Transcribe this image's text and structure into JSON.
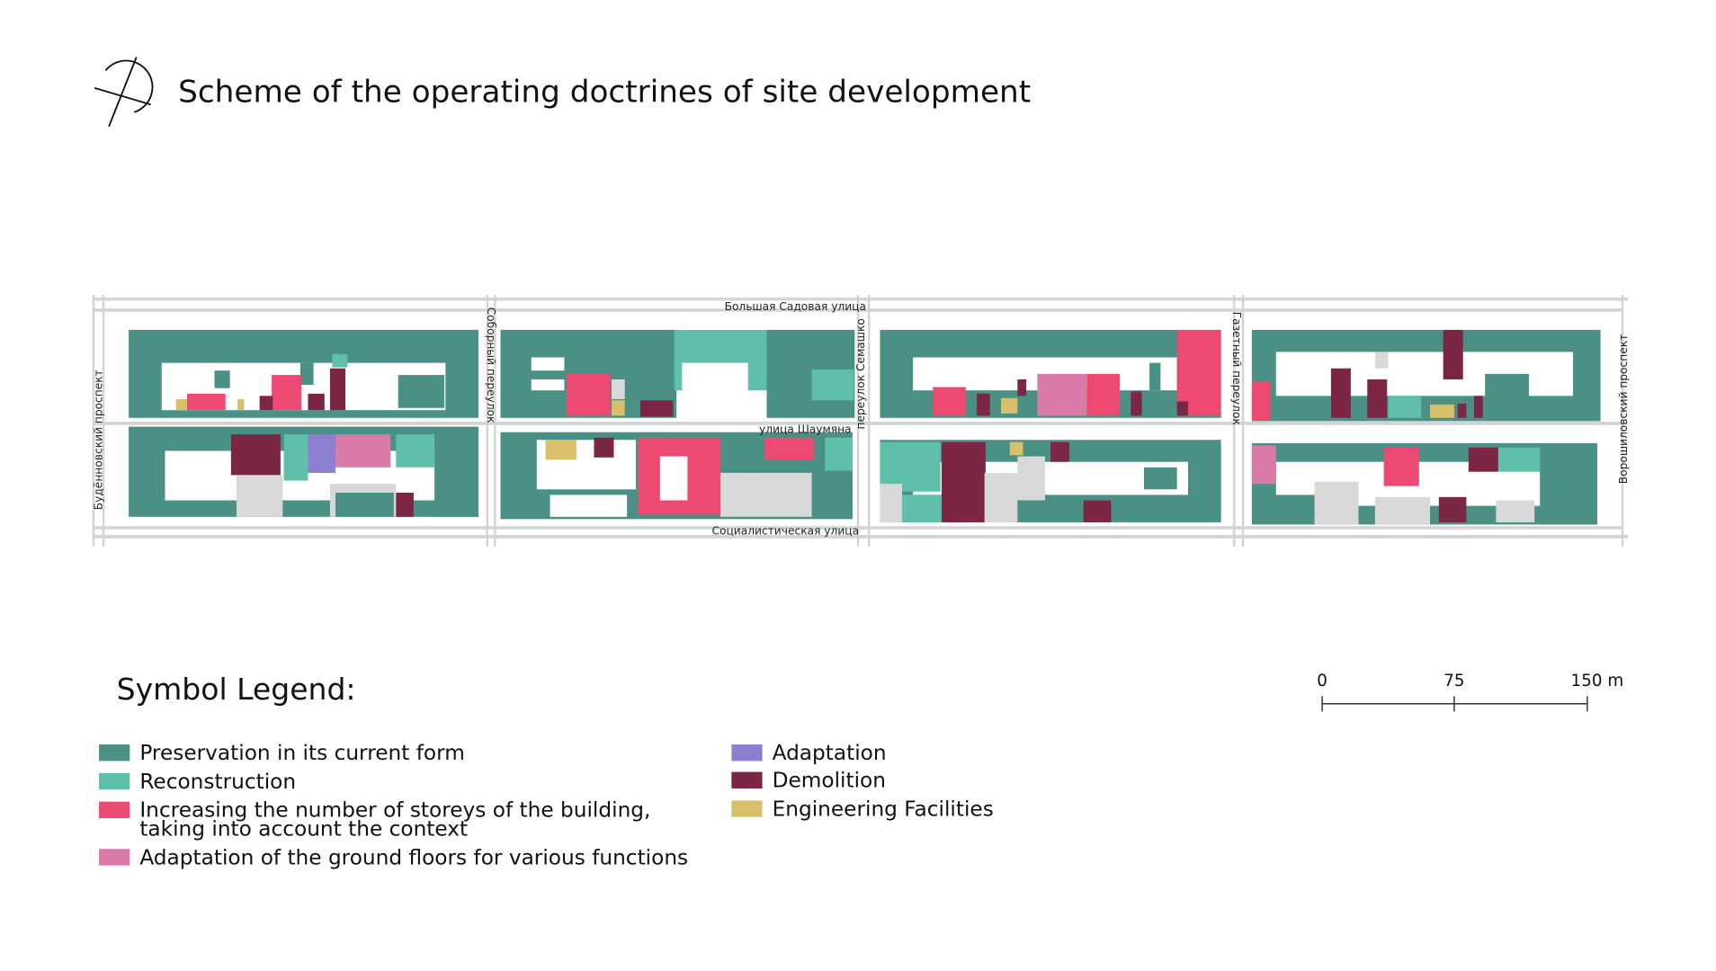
{
  "header": {
    "title": "Scheme of the operating doctrines of site development"
  },
  "map": {
    "streets": [
      "Большая Садовая улица",
      "улица Шаумяна",
      "Социалистическая улица",
      "Будённовский проспект",
      "Соборный переулок",
      "переулок Семашко",
      "Газетный переулок",
      "Ворошиловский проспект"
    ]
  },
  "scale": {
    "labels": [
      "0",
      "75",
      "150 m"
    ]
  },
  "legend": {
    "title": "Symbol Legend:",
    "items": [
      {
        "lines": [
          "Preservation in its current form"
        ],
        "color": "#4a9085"
      },
      {
        "lines": [
          "Reconstruction"
        ],
        "color": "#5fbfab"
      },
      {
        "lines": [
          "Increasing the number of storeys of the building,",
          "taking into account the context"
        ],
        "color": "#ec4a72"
      },
      {
        "lines": [
          "Adaptation of the ground floors for various functions"
        ],
        "color": "#d97aa8"
      },
      {
        "lines": [
          "Adaptation"
        ],
        "color": "#8c7fcf"
      },
      {
        "lines": [
          "Demolition"
        ],
        "color": "#7c2646"
      },
      {
        "lines": [
          "Engineering Facilities"
        ],
        "color": "#d9bf6a"
      }
    ]
  }
}
